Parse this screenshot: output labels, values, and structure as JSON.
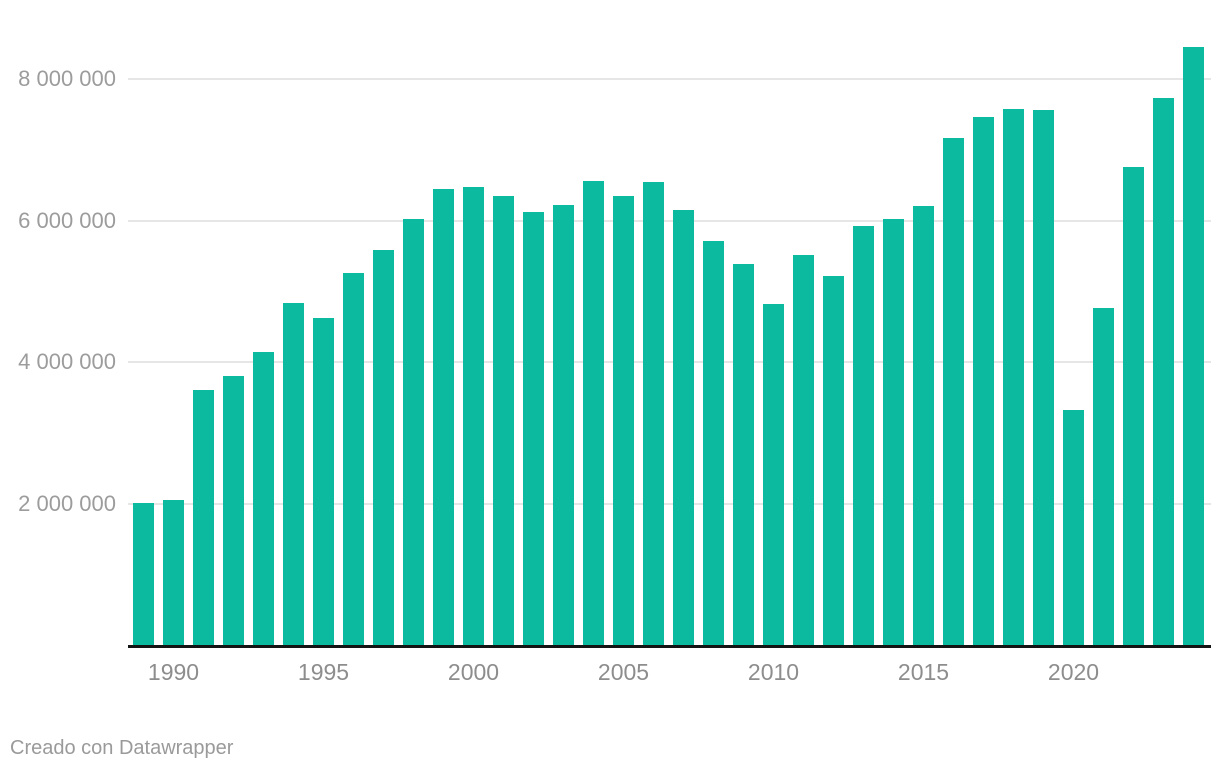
{
  "chart_data": {
    "type": "bar",
    "x": [
      1989,
      1990,
      1991,
      1992,
      1993,
      1994,
      1995,
      1996,
      1997,
      1998,
      1999,
      2000,
      2001,
      2002,
      2003,
      2004,
      2005,
      2006,
      2007,
      2008,
      2009,
      2010,
      2011,
      2012,
      2013,
      2014,
      2015,
      2016,
      2017,
      2018,
      2019,
      2020,
      2021,
      2022,
      2023,
      2024
    ],
    "values": [
      2000000,
      2050000,
      3600000,
      3800000,
      4140000,
      4830000,
      4620000,
      5260000,
      5580000,
      6020000,
      6450000,
      6480000,
      6340000,
      6120000,
      6220000,
      6560000,
      6350000,
      6540000,
      6150000,
      5710000,
      5390000,
      4820000,
      5510000,
      5220000,
      5920000,
      6020000,
      6200000,
      7160000,
      7460000,
      7570000,
      7560000,
      3320000,
      4760000,
      6750000,
      7730000,
      8450000
    ],
    "y_ticks": [
      {
        "value": 2000000,
        "label": "2 000 000"
      },
      {
        "value": 4000000,
        "label": "4 000 000"
      },
      {
        "value": 6000000,
        "label": "6 000 000"
      },
      {
        "value": 8000000,
        "label": "8 000 000"
      }
    ],
    "x_ticks": [
      1990,
      1995,
      2000,
      2005,
      2010,
      2015,
      2020
    ],
    "ylim": [
      0,
      8500000
    ],
    "grid": "horizontal",
    "legend": "none"
  },
  "colors": {
    "bar": "#0cbaa0",
    "gridline": "#e6e6e6",
    "axis_line": "#141414",
    "y_label": "#9c9c9c",
    "x_label": "#8d8d8d",
    "footer_text": "#9a9a9a"
  },
  "footer": {
    "credit": "Creado con Datawrapper"
  }
}
